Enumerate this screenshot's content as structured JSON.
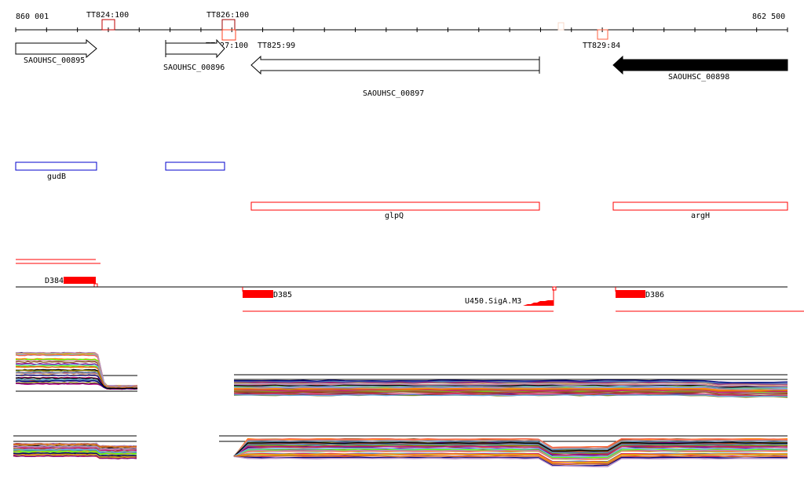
{
  "ruler": {
    "start_label": "860 001",
    "end_label": "862 500"
  },
  "terminators": [
    {
      "label": "TT824:100",
      "color": "#c00000"
    },
    {
      "label": "TT826:100",
      "color": "#a00000"
    },
    {
      "label": "TT827:100",
      "color": "#ff4020"
    },
    {
      "label": "TT825:99",
      "color": "#ff4020"
    },
    {
      "label": "TT829:84",
      "color": "#ff6040"
    }
  ],
  "genes": [
    {
      "label": "SAOUHSC_00895",
      "strand": "+"
    },
    {
      "label": "SAOUHSC_00896",
      "strand": "+"
    },
    {
      "label": "SAOUHSC_00897",
      "strand": "-"
    },
    {
      "label": "SAOUHSC_00898",
      "strand": "-"
    }
  ],
  "annotations": [
    {
      "label": "gudB",
      "color": "#0000cc"
    },
    {
      "label": "",
      "color": "#0000cc"
    },
    {
      "label": "glpQ",
      "color": "#ff0000"
    },
    {
      "label": "argH",
      "color": "#ff0000"
    }
  ],
  "features": [
    {
      "label": "D384"
    },
    {
      "label": "D385"
    },
    {
      "label": "U450.SigA.M3"
    },
    {
      "label": "D386"
    }
  ],
  "colors": {
    "feature": "#ff0000",
    "gene_fill": "#000000"
  },
  "expression_palette": [
    "#000000",
    "#b58fc8",
    "#6ab0e8",
    "#d2691e",
    "#8b4513",
    "#9acd32",
    "#66ff00",
    "#cc3366",
    "#808000",
    "#ff6347",
    "#800080",
    "#daa520",
    "#a0522d",
    "#c71585",
    "#ff8c00",
    "#4682b4",
    "#bc8f8f",
    "#000080"
  ]
}
